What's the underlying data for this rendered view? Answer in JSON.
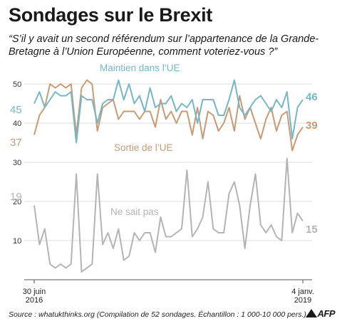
{
  "header": {
    "title": "Sondages sur le Brexit",
    "subtitle": "“S’il y avait un second référendum sur l’appartenance de la Grande-Bretagne à l’Union Européenne, comment voteriez-vous ?”"
  },
  "footer": {
    "source": "Source : whatukthinks.org (Compilation de 52 sondages. Échantillon : 1 000-10 000 pers.)",
    "logo": "AFP"
  },
  "chart_data": [
    {
      "type": "line",
      "y_ticks": [
        40,
        50
      ],
      "ylim": [
        35,
        52
      ],
      "grid": true,
      "series": [
        {
          "name": "Maintien dans l’UE",
          "color": "#74b7c9",
          "start_label": "45",
          "end_label": "46",
          "values": [
            45,
            48,
            44,
            46,
            48,
            47,
            47,
            48,
            35,
            47,
            46,
            46,
            40,
            45,
            46,
            46,
            51,
            46,
            50,
            45,
            47,
            43,
            49,
            44,
            45,
            45,
            47,
            43,
            45,
            44,
            46,
            40,
            46,
            46,
            46,
            42,
            42,
            46,
            51,
            44,
            42,
            44,
            46,
            47,
            45,
            43,
            46,
            44,
            48,
            36,
            44,
            46
          ]
        },
        {
          "name": "Sortie de l’UE",
          "color": "#c99a73",
          "start_label": "37",
          "end_label": "39",
          "values": [
            37,
            42,
            44,
            50,
            49,
            50,
            49,
            50,
            37,
            49,
            51,
            50,
            38,
            44,
            45,
            46,
            41,
            43,
            43,
            43,
            41,
            43,
            43,
            39,
            46,
            41,
            43,
            40,
            43,
            43,
            37,
            44,
            36,
            43,
            42,
            38,
            40,
            44,
            38,
            47,
            41,
            44,
            40,
            36,
            41,
            44,
            38,
            42,
            43,
            33,
            37,
            39
          ]
        }
      ]
    },
    {
      "type": "line",
      "y_ticks": [
        10,
        20,
        30
      ],
      "ylim": [
        0,
        31
      ],
      "grid": true,
      "x_labels": [
        "30 juin\n2016",
        "4 janv.\n2019"
      ],
      "series": [
        {
          "name": "Ne sait pas",
          "color": "#b4b4b4",
          "start_label": "19",
          "end_label": "15",
          "values": [
            19,
            9,
            13,
            4,
            3,
            4,
            3,
            4,
            27,
            2,
            3,
            4,
            27,
            9,
            12,
            8,
            13,
            5,
            6,
            12,
            10,
            12,
            12,
            7,
            16,
            11,
            11,
            12,
            13,
            28,
            11,
            13,
            16,
            25,
            13,
            12,
            12,
            22,
            25,
            19,
            8,
            19,
            27,
            14,
            12,
            14,
            11,
            10,
            31,
            12,
            17,
            15
          ]
        }
      ]
    }
  ]
}
